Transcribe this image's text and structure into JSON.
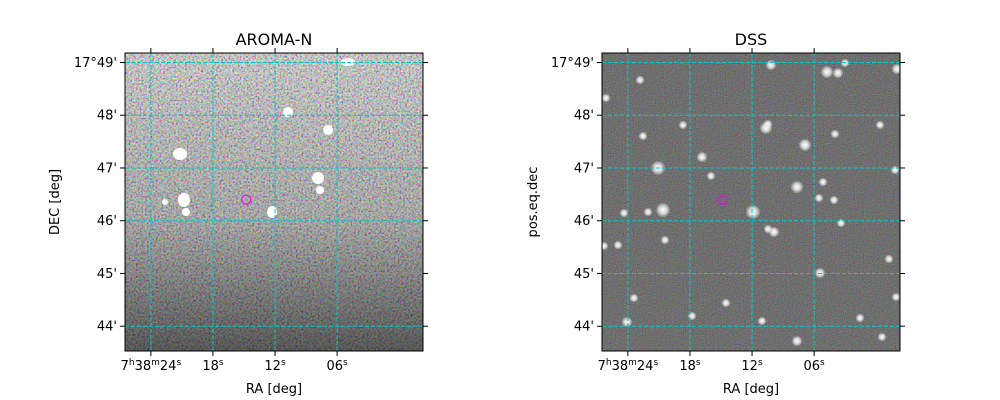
{
  "chart_data": [
    {
      "type": "image",
      "title": "AROMA-N",
      "xlabel": "RA [deg]",
      "ylabel": "DEC [deg]",
      "image_style": "noisy",
      "x_ticks": [
        {
          "value": 24,
          "label_main": "7",
          "sup1": "h",
          "mid": "38",
          "sup2": "m",
          "tail": "24",
          "sup3": "s"
        },
        {
          "value": 18,
          "label_main": "18",
          "sup1": "s"
        },
        {
          "value": 12,
          "label_main": "12",
          "sup1": "s"
        },
        {
          "value": 6,
          "label_main": "06",
          "sup1": "s"
        }
      ],
      "y_ticks": [
        {
          "value": 49,
          "label": "17°49'"
        },
        {
          "value": 48,
          "label": "48'"
        },
        {
          "value": 47,
          "label": "47'"
        },
        {
          "value": 46,
          "label": "46'"
        },
        {
          "value": 45,
          "label": "45'"
        },
        {
          "value": 44,
          "label": "44'"
        }
      ],
      "xlim": [
        26.5,
        -2.3
      ],
      "ylim": [
        43.53,
        49.18
      ],
      "grid": true,
      "marker": {
        "ra_s": 14.8,
        "dec_min": 46.4,
        "color": "#ff00ff"
      }
    },
    {
      "type": "image",
      "title": "DSS",
      "xlabel": "RA [deg]",
      "ylabel": "pos.eq.dec",
      "image_style": "stars",
      "x_ticks": [
        {
          "value": 24,
          "label_main": "7",
          "sup1": "h",
          "mid": "38",
          "sup2": "m",
          "tail": "24",
          "sup3": "s"
        },
        {
          "value": 18,
          "label_main": "18",
          "sup1": "s"
        },
        {
          "value": 12,
          "label_main": "12",
          "sup1": "s"
        },
        {
          "value": 6,
          "label_main": "06",
          "sup1": "s"
        }
      ],
      "y_ticks": [
        {
          "value": 49,
          "label": "17°49'"
        },
        {
          "value": 48,
          "label": "48'"
        },
        {
          "value": 47,
          "label": "47'"
        },
        {
          "value": 46,
          "label": "46'"
        },
        {
          "value": 45,
          "label": "45'"
        },
        {
          "value": 44,
          "label": "44'"
        }
      ],
      "xlim": [
        26.5,
        -2.3
      ],
      "ylim": [
        43.53,
        49.18
      ],
      "grid": true,
      "marker": {
        "ra_s": 14.8,
        "dec_min": 46.4,
        "color": "#ff00ff"
      }
    }
  ],
  "colors": {
    "grid": "#00c8c8",
    "marker": "#ff00ff"
  }
}
